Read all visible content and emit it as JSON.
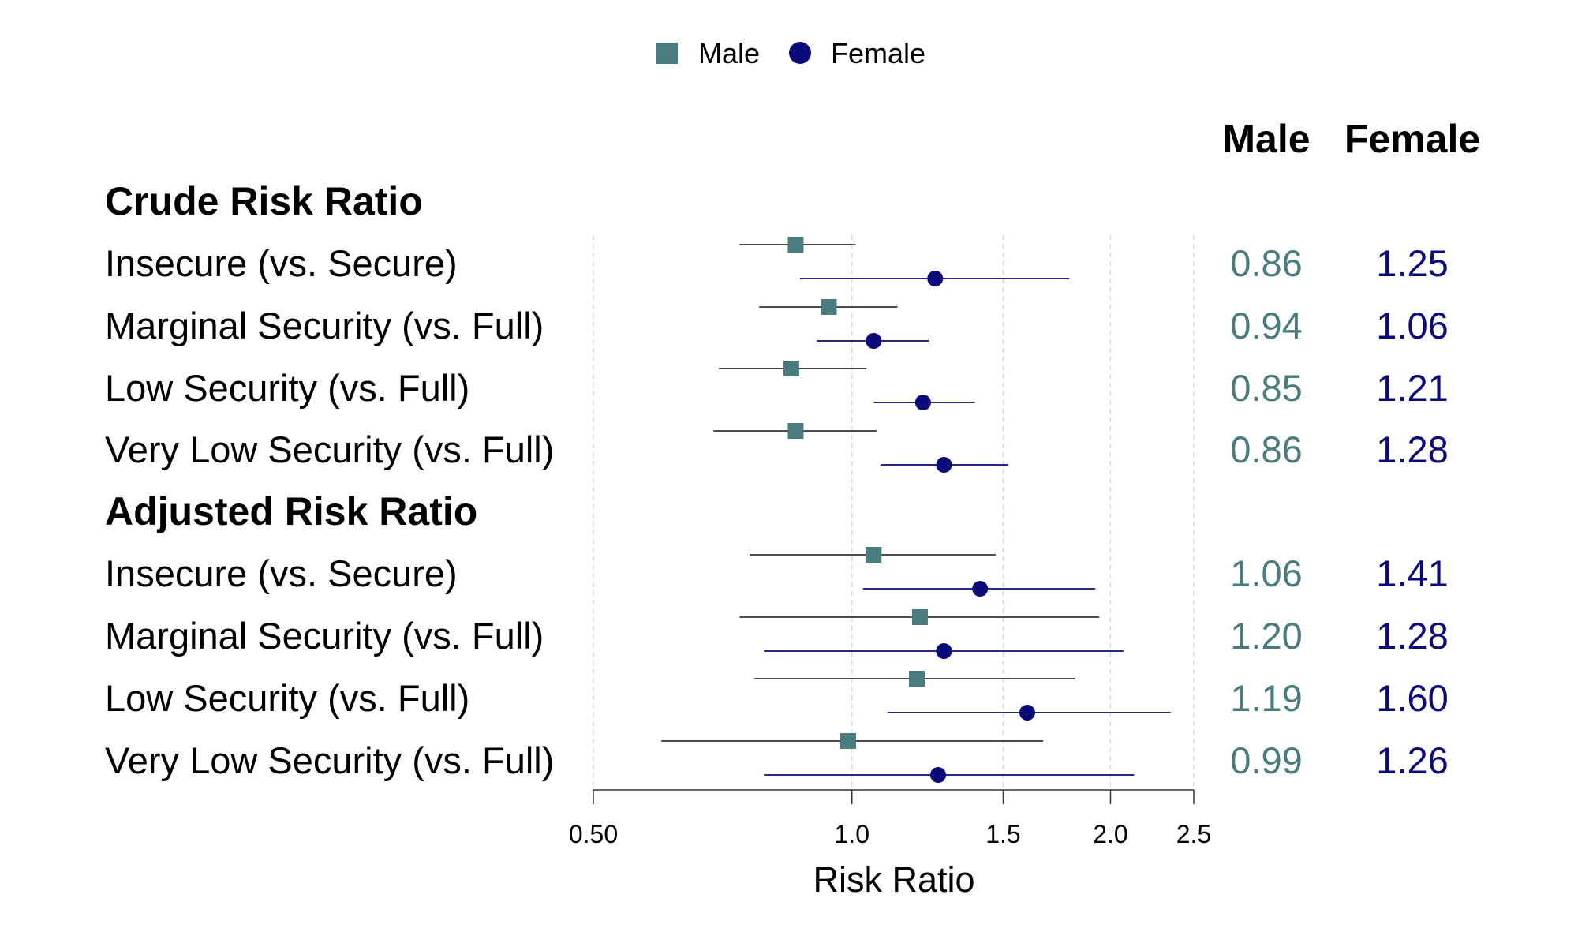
{
  "chart_data": {
    "type": "forest",
    "xlabel": "Risk Ratio",
    "x_scale": "log",
    "xlim": [
      0.5,
      2.5
    ],
    "xticks": [
      0.5,
      1.0,
      1.5,
      2.0,
      2.5
    ],
    "xtick_labels": [
      "0.50",
      "1.0",
      "1.5",
      "2.0",
      "2.5"
    ],
    "grid": "vertical dashed at ticks",
    "legend_position": "top",
    "legend": [
      {
        "name": "Male",
        "marker": "square",
        "color": "#4a7b7e"
      },
      {
        "name": "Female",
        "marker": "circle",
        "color": "#0a0a7a"
      }
    ],
    "column_headers": [
      "Male",
      "Female"
    ],
    "groups": [
      {
        "title": "Crude Risk Ratio",
        "rows": [
          {
            "label": "Insecure (vs. Secure)",
            "male": {
              "rr": 0.86,
              "lo": 0.74,
              "hi": 1.01,
              "text": "0.86"
            },
            "female": {
              "rr": 1.25,
              "lo": 0.87,
              "hi": 1.79,
              "text": "1.25"
            }
          },
          {
            "label": "Marginal Security (vs. Full)",
            "male": {
              "rr": 0.94,
              "lo": 0.78,
              "hi": 1.13,
              "text": "0.94"
            },
            "female": {
              "rr": 1.06,
              "lo": 0.91,
              "hi": 1.23,
              "text": "1.06"
            }
          },
          {
            "label": "Low Security (vs. Full)",
            "male": {
              "rr": 0.85,
              "lo": 0.7,
              "hi": 1.04,
              "text": "0.85"
            },
            "female": {
              "rr": 1.21,
              "lo": 1.06,
              "hi": 1.39,
              "text": "1.21"
            }
          },
          {
            "label": "Very Low Security (vs. Full)",
            "male": {
              "rr": 0.86,
              "lo": 0.69,
              "hi": 1.07,
              "text": "0.86"
            },
            "female": {
              "rr": 1.28,
              "lo": 1.08,
              "hi": 1.52,
              "text": "1.28"
            }
          }
        ]
      },
      {
        "title": "Adjusted Risk Ratio",
        "rows": [
          {
            "label": "Insecure (vs. Secure)",
            "male": {
              "rr": 1.06,
              "lo": 0.76,
              "hi": 1.47,
              "text": "1.06"
            },
            "female": {
              "rr": 1.41,
              "lo": 1.03,
              "hi": 1.92,
              "text": "1.41"
            }
          },
          {
            "label": "Marginal Security (vs. Full)",
            "male": {
              "rr": 1.2,
              "lo": 0.74,
              "hi": 1.94,
              "text": "1.20"
            },
            "female": {
              "rr": 1.28,
              "lo": 0.79,
              "hi": 2.07,
              "text": "1.28"
            }
          },
          {
            "label": "Low Security (vs. Full)",
            "male": {
              "rr": 1.19,
              "lo": 0.77,
              "hi": 1.82,
              "text": "1.19"
            },
            "female": {
              "rr": 1.6,
              "lo": 1.1,
              "hi": 2.35,
              "text": "1.60"
            }
          },
          {
            "label": "Very Low Security (vs. Full)",
            "male": {
              "rr": 0.99,
              "lo": 0.6,
              "hi": 1.67,
              "text": "0.99"
            },
            "female": {
              "rr": 1.26,
              "lo": 0.79,
              "hi": 2.13,
              "text": "1.26"
            }
          }
        ]
      }
    ]
  }
}
